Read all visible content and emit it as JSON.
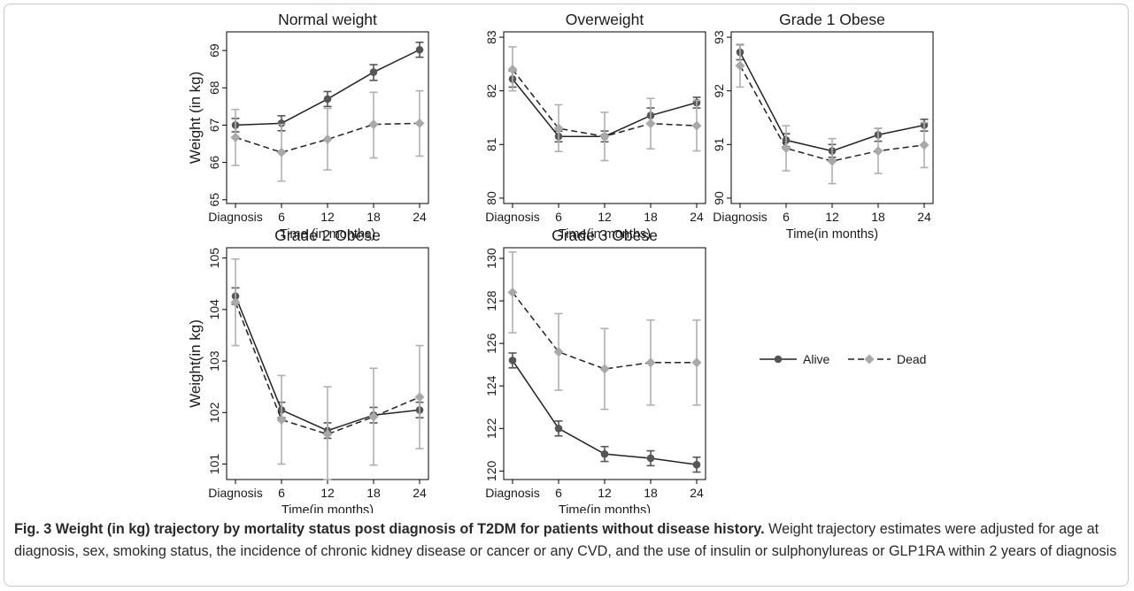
{
  "chart_data": [
    {
      "type": "line",
      "title": "Normal weight",
      "xlabel": "Time (in months)",
      "ylabel": "Weight (in kg)",
      "categories": [
        "Diagnosis",
        "6",
        "12",
        "18",
        "24"
      ],
      "yticks": [
        65,
        66,
        67,
        68,
        69
      ],
      "ylim": [
        64.9,
        69.5
      ],
      "series": [
        {
          "name": "Alive",
          "values": [
            67.0,
            67.05,
            67.7,
            68.42,
            69.02
          ],
          "ci_low": [
            66.82,
            66.85,
            67.5,
            68.2,
            68.82
          ],
          "ci_high": [
            67.18,
            67.25,
            67.9,
            68.62,
            69.22
          ]
        },
        {
          "name": "Dead",
          "values": [
            66.67,
            66.27,
            66.62,
            67.02,
            67.05
          ],
          "ci_low": [
            65.92,
            65.5,
            65.8,
            66.12,
            66.17
          ],
          "ci_high": [
            67.42,
            67.02,
            67.45,
            67.88,
            67.92
          ]
        }
      ]
    },
    {
      "type": "line",
      "title": "Overweight",
      "xlabel": "Time(in months)",
      "ylabel": "",
      "categories": [
        "Diagnosis",
        "6",
        "12",
        "18",
        "24"
      ],
      "yticks": [
        80,
        81,
        82,
        83
      ],
      "ylim": [
        79.9,
        83.1
      ],
      "series": [
        {
          "name": "Alive",
          "values": [
            82.22,
            81.15,
            81.15,
            81.54,
            81.78
          ],
          "ci_low": [
            82.07,
            81.05,
            81.05,
            81.4,
            81.68
          ],
          "ci_high": [
            82.37,
            81.25,
            81.25,
            81.68,
            81.88
          ]
        },
        {
          "name": "Dead",
          "values": [
            82.4,
            81.3,
            81.15,
            81.39,
            81.35
          ],
          "ci_low": [
            82.0,
            80.87,
            80.7,
            80.92,
            80.88
          ],
          "ci_high": [
            82.82,
            81.74,
            81.6,
            81.86,
            81.82
          ]
        }
      ]
    },
    {
      "type": "line",
      "title": "Grade 1 Obese",
      "xlabel": "Time(in months)",
      "ylabel": "",
      "categories": [
        "Diagnosis",
        "6",
        "12",
        "18",
        "24"
      ],
      "yticks": [
        90,
        91,
        92,
        93
      ],
      "ylim": [
        89.9,
        93.1
      ],
      "series": [
        {
          "name": "Alive",
          "values": [
            92.72,
            91.08,
            90.88,
            91.18,
            91.36
          ],
          "ci_low": [
            92.58,
            90.96,
            90.76,
            91.06,
            91.25
          ],
          "ci_high": [
            92.86,
            91.2,
            91.0,
            91.3,
            91.47
          ]
        },
        {
          "name": "Dead",
          "values": [
            92.47,
            90.93,
            90.69,
            90.88,
            90.99
          ],
          "ci_low": [
            92.07,
            90.51,
            90.27,
            90.46,
            90.57
          ],
          "ci_high": [
            92.87,
            91.35,
            91.11,
            91.3,
            91.41
          ]
        }
      ]
    },
    {
      "type": "line",
      "title": "Grade 2 Obese",
      "xlabel": "Time(in months)",
      "ylabel": "Weight(in kg)",
      "categories": [
        "Diagnosis",
        "6",
        "12",
        "18",
        "24"
      ],
      "yticks": [
        101,
        102,
        103,
        104,
        105
      ],
      "ylim": [
        100.7,
        105.2
      ],
      "series": [
        {
          "name": "Alive",
          "values": [
            104.26,
            102.05,
            101.65,
            101.95,
            102.05
          ],
          "ci_low": [
            104.1,
            101.9,
            101.5,
            101.8,
            101.9
          ],
          "ci_high": [
            104.42,
            102.2,
            101.8,
            102.1,
            102.2
          ]
        },
        {
          "name": "Dead",
          "values": [
            104.14,
            101.86,
            101.58,
            101.92,
            102.3
          ],
          "ci_low": [
            103.3,
            101.0,
            100.7,
            100.98,
            101.3
          ],
          "ci_high": [
            104.98,
            102.72,
            102.5,
            102.86,
            103.3
          ]
        }
      ]
    },
    {
      "type": "line",
      "title": "Grade 3 Obese",
      "xlabel": "Time(in months)",
      "ylabel": "",
      "categories": [
        "Diagnosis",
        "6",
        "12",
        "18",
        "24"
      ],
      "yticks": [
        120,
        122,
        124,
        126,
        128,
        130
      ],
      "ylim": [
        119.6,
        130.5
      ],
      "series": [
        {
          "name": "Alive",
          "values": [
            125.2,
            122.0,
            120.8,
            120.6,
            120.3
          ],
          "ci_low": [
            124.85,
            121.65,
            120.45,
            120.25,
            119.95
          ],
          "ci_high": [
            125.55,
            122.35,
            121.15,
            120.95,
            120.65
          ]
        },
        {
          "name": "Dead",
          "values": [
            128.4,
            125.6,
            124.8,
            125.1,
            125.1
          ],
          "ci_low": [
            126.5,
            123.8,
            122.9,
            123.1,
            123.1
          ],
          "ci_high": [
            130.3,
            127.4,
            126.7,
            127.1,
            127.1
          ]
        }
      ]
    }
  ],
  "legend": {
    "alive_label": "Alive",
    "dead_label": "Dead",
    "alive_color": "#555555",
    "dead_color": "#a9a9a9"
  },
  "caption": {
    "label": "Fig. 3",
    "title": "Weight (in kg) trajectory by mortality status post diagnosis of T2DM for patients without disease history.",
    "body": "Weight trajectory estimates were adjusted for age at diagnosis, sex, smoking status, the incidence of chronic kidney disease or cancer or any CVD, and the use of insulin or sulphonylureas or GLP1RA within 2 years of diagnosis"
  }
}
